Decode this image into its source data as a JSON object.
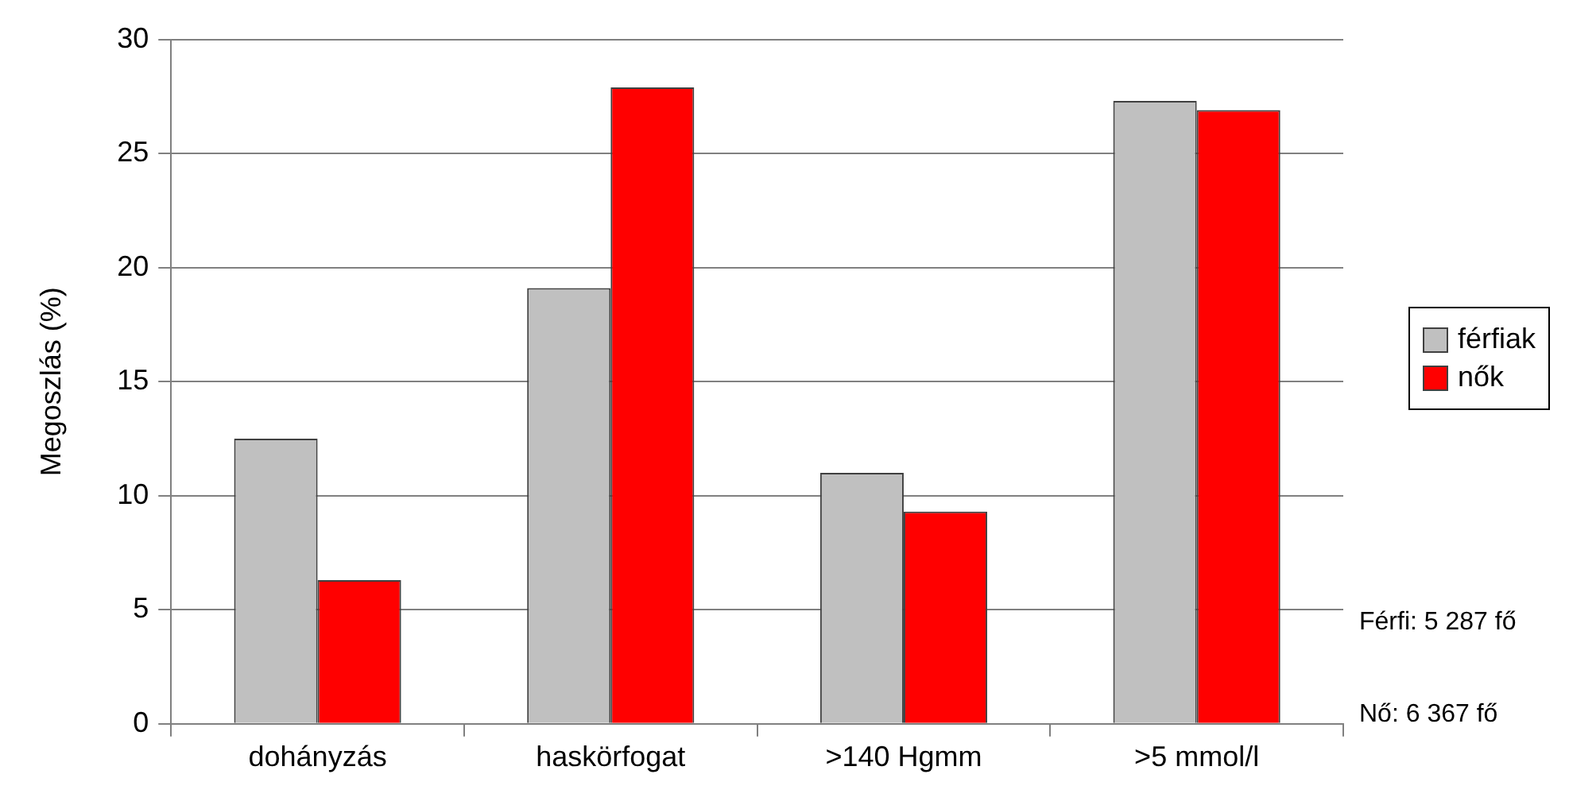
{
  "chart_data": {
    "type": "bar",
    "ylabel": "Megoszlás (%)",
    "categories": [
      "dohányzás",
      "haskörfogat",
      ">140 Hgmm",
      ">5 mmol/l"
    ],
    "series": [
      {
        "name": "férfiak",
        "color": "#c0c0c0",
        "values": [
          12.5,
          19.1,
          11.0,
          27.3
        ]
      },
      {
        "name": "nők",
        "color": "#ff0000",
        "values": [
          6.3,
          27.9,
          9.3,
          26.9
        ]
      }
    ],
    "ylim": [
      0,
      30
    ],
    "yticks": [
      0,
      5,
      10,
      15,
      20,
      25,
      30
    ],
    "grid": "y",
    "legend": "right",
    "annotations": [
      "Férfi: 5 287 fő",
      "Nő: 6 367 fő"
    ]
  }
}
